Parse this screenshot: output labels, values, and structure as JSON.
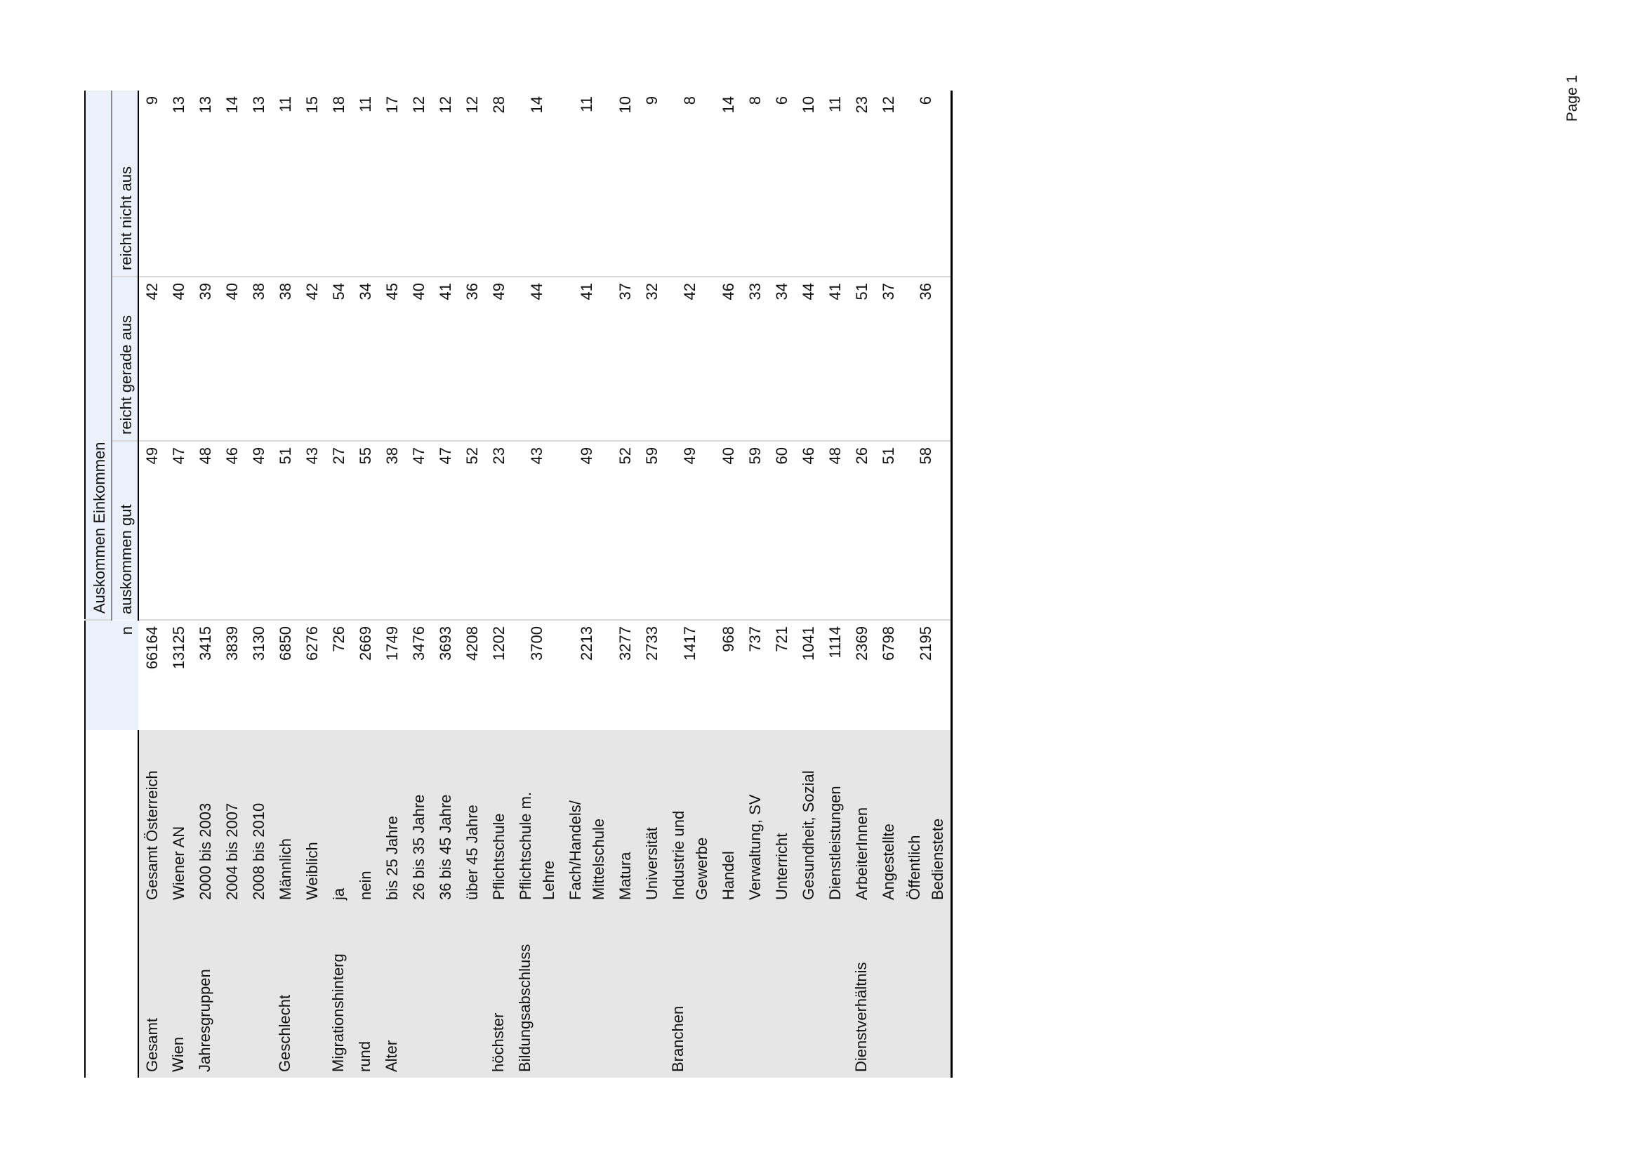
{
  "page_label": "Page 1",
  "header": {
    "group": "Auskommen Einkommen",
    "n": "n",
    "columns": [
      "auskommen gut",
      "reicht gerade aus",
      "reicht nicht aus"
    ]
  },
  "rows": [
    {
      "category": "Gesamt",
      "item": "Gesamt Österreich",
      "n": "66164",
      "gut": "49",
      "gerade": "42",
      "nicht": "9"
    },
    {
      "category": "Wien",
      "item": "Wiener AN",
      "n": "13125",
      "gut": "47",
      "gerade": "40",
      "nicht": "13"
    },
    {
      "category": "Jahresgruppen",
      "item": "2000 bis 2003",
      "n": "3415",
      "gut": "48",
      "gerade": "39",
      "nicht": "13"
    },
    {
      "category": "",
      "item": "2004 bis 2007",
      "n": "3839",
      "gut": "46",
      "gerade": "40",
      "nicht": "14"
    },
    {
      "category": "",
      "item": "2008 bis 2010",
      "n": "3130",
      "gut": "49",
      "gerade": "38",
      "nicht": "13"
    },
    {
      "category": "Geschlecht",
      "item": "Männlich",
      "n": "6850",
      "gut": "51",
      "gerade": "38",
      "nicht": "11"
    },
    {
      "category": "",
      "item": "Weiblich",
      "n": "6276",
      "gut": "43",
      "gerade": "42",
      "nicht": "15"
    },
    {
      "category": "Migrationshinterg",
      "item": "ja",
      "n": "726",
      "gut": "27",
      "gerade": "54",
      "nicht": "18"
    },
    {
      "category": "rund",
      "item": "nein",
      "n": "2669",
      "gut": "55",
      "gerade": "34",
      "nicht": "11"
    },
    {
      "category": "Alter",
      "item": "bis 25 Jahre",
      "n": "1749",
      "gut": "38",
      "gerade": "45",
      "nicht": "17"
    },
    {
      "category": "",
      "item": "26 bis 35 Jahre",
      "n": "3476",
      "gut": "47",
      "gerade": "40",
      "nicht": "12"
    },
    {
      "category": "",
      "item": "36 bis 45 Jahre",
      "n": "3693",
      "gut": "47",
      "gerade": "41",
      "nicht": "12"
    },
    {
      "category": "",
      "item": "über 45 Jahre",
      "n": "4208",
      "gut": "52",
      "gerade": "36",
      "nicht": "12"
    },
    {
      "category": "höchster",
      "item": "Pflichtschule",
      "n": "1202",
      "gut": "23",
      "gerade": "49",
      "nicht": "28"
    },
    {
      "category": "Bildungsabschluss",
      "item": "Pflichtschule m.\nLehre",
      "n": "3700",
      "gut": "43",
      "gerade": "44",
      "nicht": "14"
    },
    {
      "category": "",
      "item": "Fach/Handels/\nMittelschule",
      "n": "2213",
      "gut": "49",
      "gerade": "41",
      "nicht": "11"
    },
    {
      "category": "",
      "item": "Matura",
      "n": "3277",
      "gut": "52",
      "gerade": "37",
      "nicht": "10"
    },
    {
      "category": "",
      "item": "Universität",
      "n": "2733",
      "gut": "59",
      "gerade": "32",
      "nicht": "9"
    },
    {
      "category": "Branchen",
      "item": "Industrie und\nGewerbe",
      "n": "1417",
      "gut": "49",
      "gerade": "42",
      "nicht": "8"
    },
    {
      "category": "",
      "item": "Handel",
      "n": "968",
      "gut": "40",
      "gerade": "46",
      "nicht": "14"
    },
    {
      "category": "",
      "item": "Verwaltung, SV",
      "n": "737",
      "gut": "59",
      "gerade": "33",
      "nicht": "8"
    },
    {
      "category": "",
      "item": "Unterricht",
      "n": "721",
      "gut": "60",
      "gerade": "34",
      "nicht": "6"
    },
    {
      "category": "",
      "item": "Gesundheit, Sozial",
      "n": "1041",
      "gut": "46",
      "gerade": "44",
      "nicht": "10"
    },
    {
      "category": "",
      "item": "Dienstleistungen",
      "n": "1114",
      "gut": "48",
      "gerade": "41",
      "nicht": "11"
    },
    {
      "category": "Dienstverhältnis",
      "item": "ArbeiterInnen",
      "n": "2369",
      "gut": "26",
      "gerade": "51",
      "nicht": "23"
    },
    {
      "category": "",
      "item": "Angestellte",
      "n": "6798",
      "gut": "51",
      "gerade": "37",
      "nicht": "12"
    },
    {
      "category": "",
      "item": "Öffentlich\nBedienstete",
      "n": "2195",
      "gut": "58",
      "gerade": "36",
      "nicht": "6"
    }
  ],
  "colors": {
    "header_bg": "#eaf1fb",
    "label_bg": "#e6e6e6",
    "grid": "#d9d9d9"
  }
}
